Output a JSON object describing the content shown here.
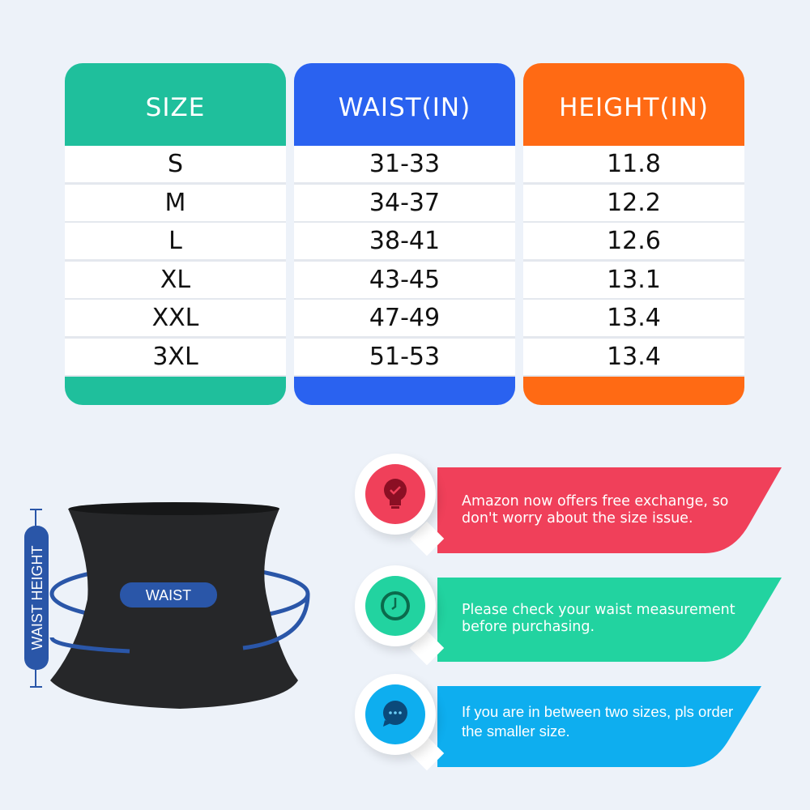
{
  "size_table": {
    "headers": [
      "SIZE",
      "WAIST(IN)",
      "HEIGHT(IN)"
    ],
    "header_colors": [
      "#1fbf9c",
      "#2a62f0",
      "#ff6a14"
    ],
    "rows": [
      [
        "S",
        "31-33",
        "11.8"
      ],
      [
        "M",
        "34-37",
        "12.2"
      ],
      [
        "L",
        "38-41",
        "12.6"
      ],
      [
        "XL",
        "43-45",
        "13.1"
      ],
      [
        "XXL",
        "47-49",
        "13.4"
      ],
      [
        "3XL",
        "51-53",
        "13.4"
      ]
    ]
  },
  "diagram": {
    "waist_label": "WAIST",
    "waist_height_label": "WAIST HEIGHT",
    "accent": "#2a56a8"
  },
  "tips": [
    {
      "icon": "lightbulb-check-icon",
      "color": "#f0405a",
      "text_line1": "Amazon now offers free exchange, so",
      "text_line2": "don't worry about the size issue."
    },
    {
      "icon": "clock-icon",
      "color": "#22d3a0",
      "text_line1": "Please check your waist measurement",
      "text_line2": "before purchasing."
    },
    {
      "icon": "chat-bubble-icon",
      "color": "#0eaeef",
      "text_line1": "If you are in between two sizes, pls order",
      "text_line2": "the smaller size."
    }
  ]
}
